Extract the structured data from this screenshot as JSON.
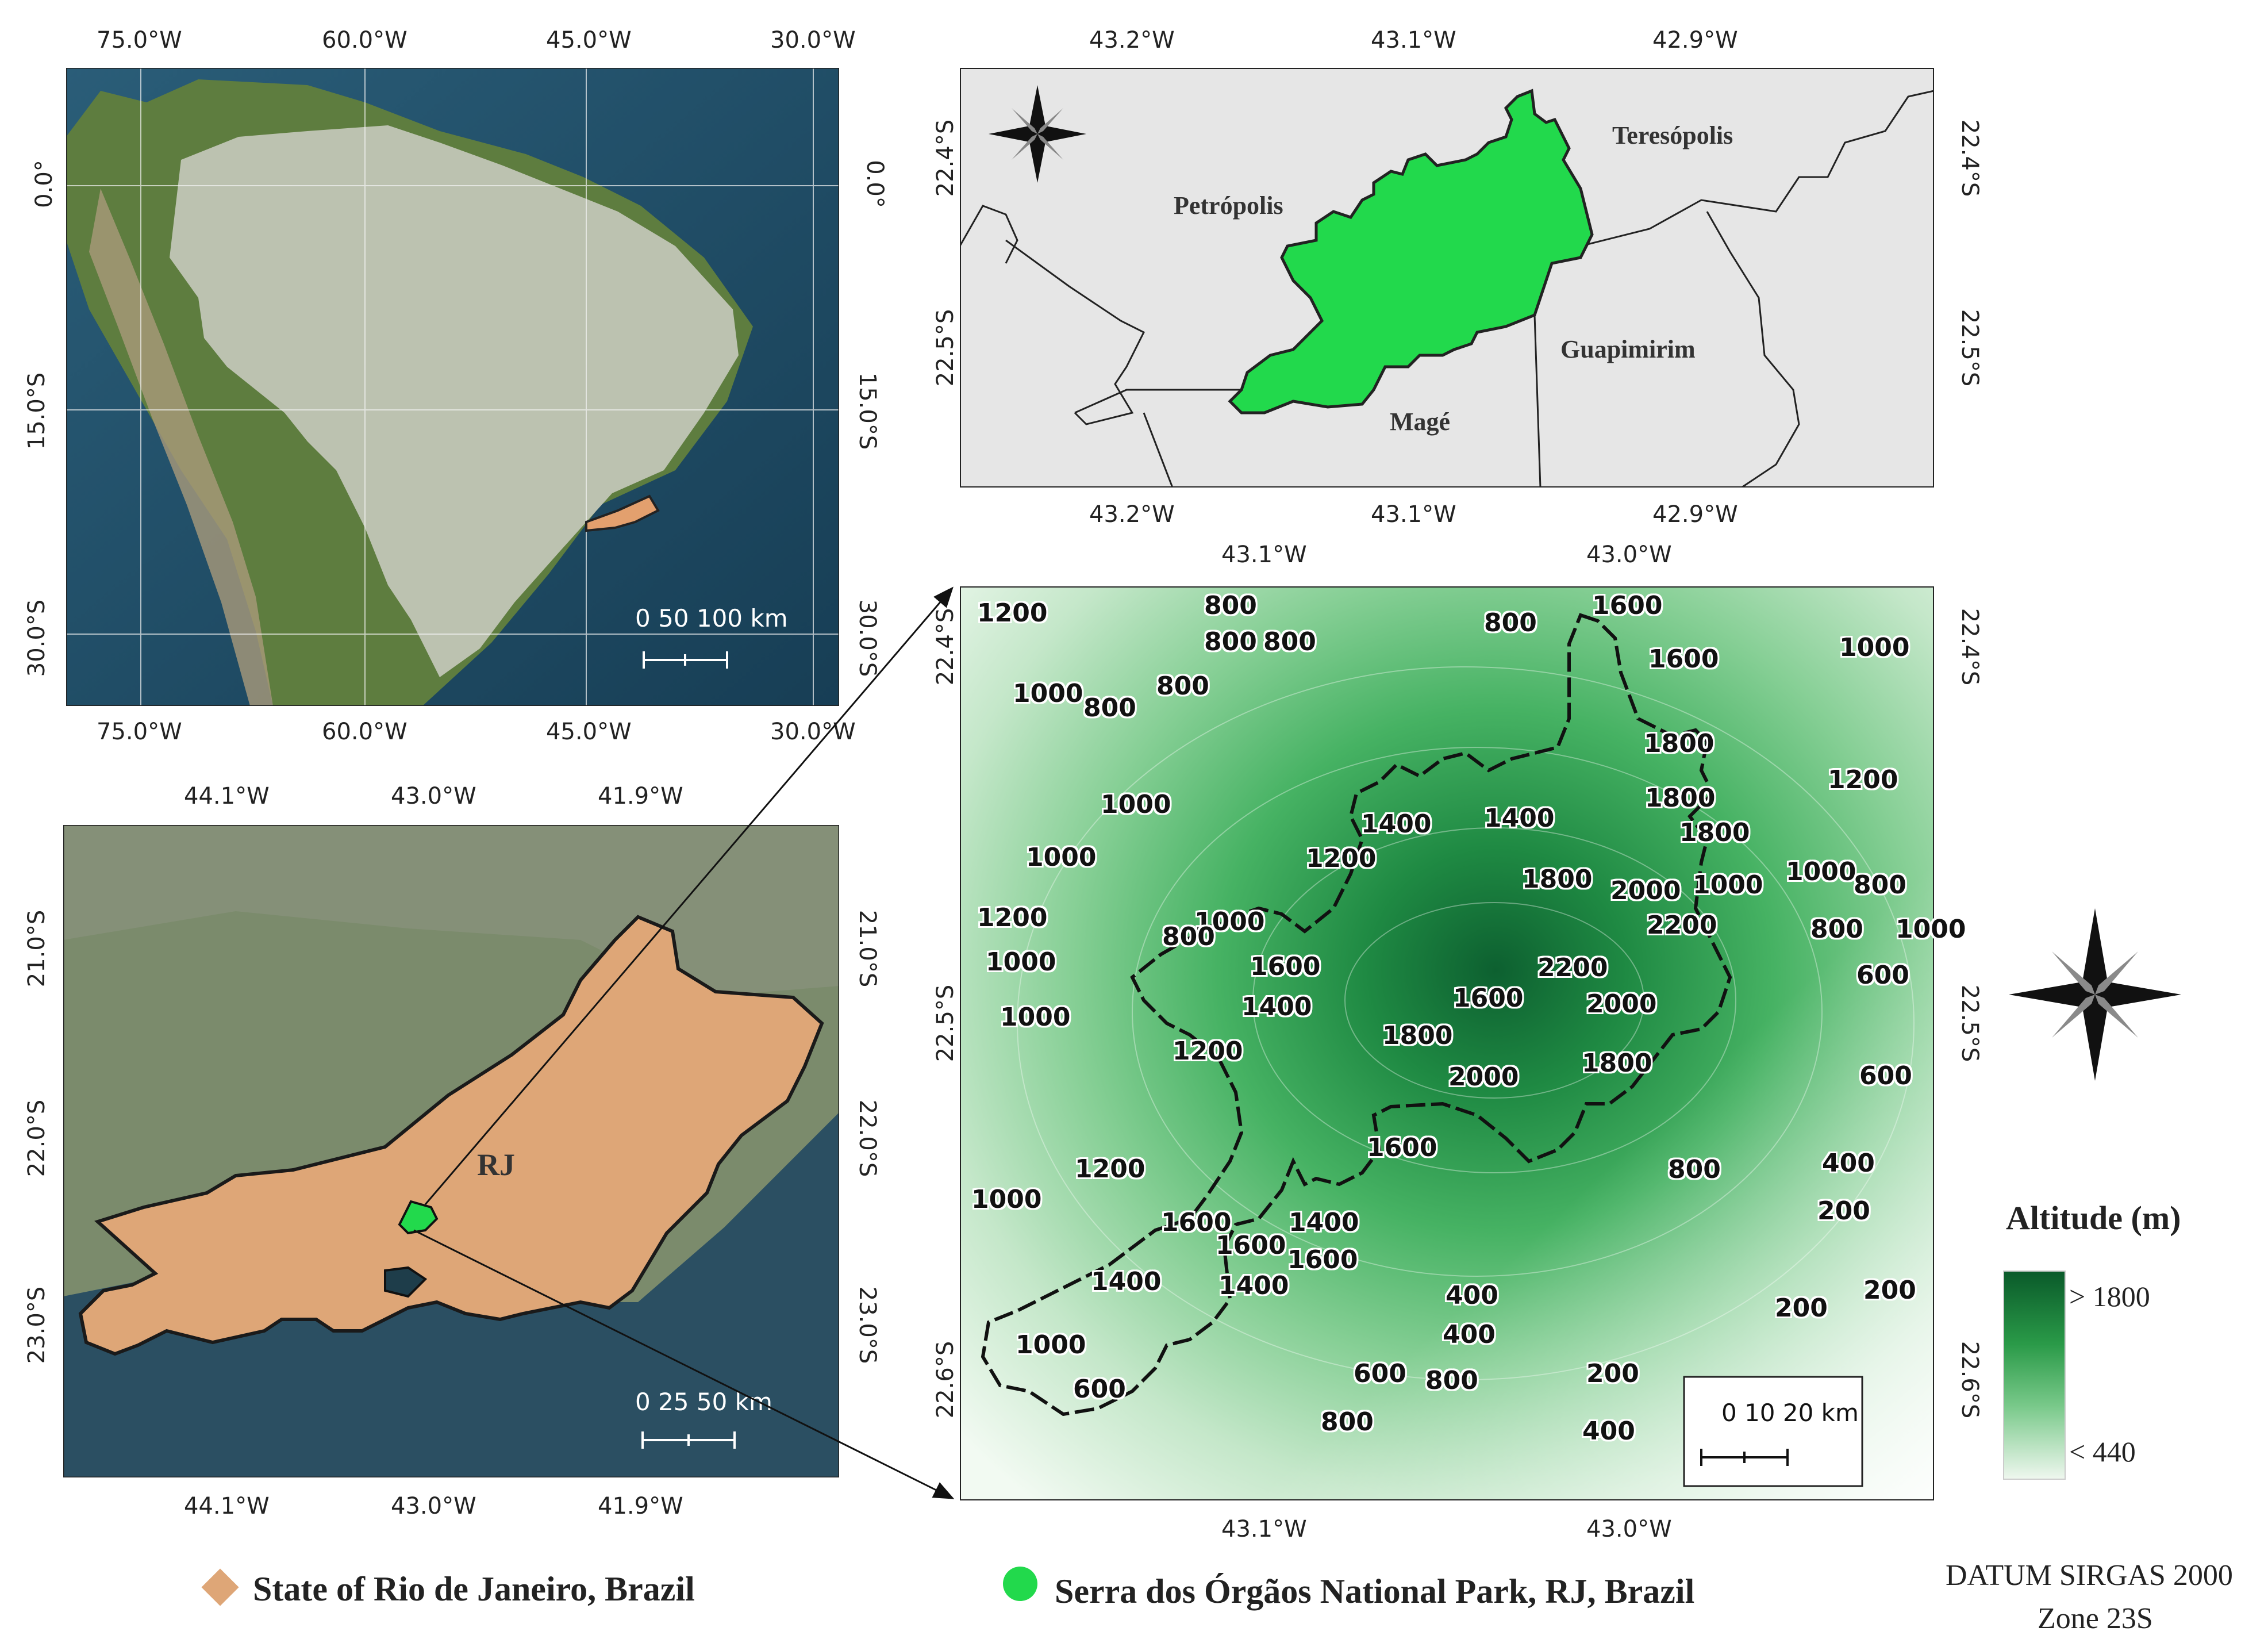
{
  "panel_brazil": {
    "top_ticks": [
      "75.0°W",
      "60.0°W",
      "45.0°W",
      "30.0°W"
    ],
    "bottom_ticks": [
      "75.0°W",
      "60.0°W",
      "45.0°W",
      "30.0°W"
    ],
    "left_ticks": [
      "0.0°",
      "15.0°S",
      "30.0°S"
    ],
    "right_ticks": [
      "0.0°",
      "15.0°S",
      "30.0°S"
    ],
    "scalebar_label": "0  50 100 km",
    "colors": {
      "ocean": "#1f4e66",
      "land": "#5f7d3c",
      "brazil": "#b9bfae",
      "rj": "#e3a06e"
    }
  },
  "panel_municipalities": {
    "top_ticks": [
      "43.2°W",
      "43.1°W",
      "42.9°W"
    ],
    "bottom_ticks": [
      "43.2°W",
      "43.1°W",
      "42.9°W"
    ],
    "left_ticks": [
      "22.4°S",
      "22.5°S"
    ],
    "right_ticks": [
      "22.4°S",
      "22.5°S"
    ],
    "labels": {
      "petropolis": "Petrópolis",
      "teresopolis": "Teresópolis",
      "guapimirim": "Guapimirim",
      "mage": "Magé"
    },
    "colors": {
      "park": "#22d94c",
      "background": "#e6e6e6"
    }
  },
  "panel_rj": {
    "top_ticks": [
      "44.1°W",
      "43.0°W",
      "41.9°W"
    ],
    "bottom_ticks": [
      "44.1°W",
      "43.0°W",
      "41.9°W"
    ],
    "left_ticks": [
      "21.0°S",
      "22.0°S",
      "23.0°S"
    ],
    "right_ticks": [
      "21.0°S",
      "22.0°S",
      "23.0°S"
    ],
    "state_label": "RJ",
    "scalebar_label": "0   25   50 km",
    "colors": {
      "state": "#dea677",
      "land": "#7a8a6a",
      "ocean": "#2b4f62"
    }
  },
  "panel_altitude": {
    "top_ticks": [
      "43.1°W",
      "43.0°W"
    ],
    "bottom_ticks": [
      "43.1°W",
      "43.0°W"
    ],
    "left_ticks": [
      "22.4°S",
      "22.5°S",
      "22.6°S"
    ],
    "right_ticks": [
      "22.4°S",
      "22.5°S",
      "22.6°S"
    ],
    "scalebar_label": "0   10  20 km",
    "contour_labels": [
      "1200",
      "800",
      "800",
      "800",
      "800",
      "1600",
      "1000",
      "1600",
      "1000",
      "800",
      "800",
      "1800",
      "1200",
      "1000",
      "1400",
      "1400",
      "1800",
      "1800",
      "1200",
      "1000",
      "1000",
      "1000",
      "800",
      "1200",
      "1800",
      "2000",
      "1000",
      "800",
      "1000",
      "800",
      "2200",
      "1600",
      "1000",
      "2200",
      "600",
      "1400",
      "1600",
      "2000",
      "1000",
      "1200",
      "1800",
      "1800",
      "2000",
      "600",
      "1600",
      "1200",
      "800",
      "400",
      "1000",
      "1600",
      "1400",
      "200",
      "1600",
      "1600",
      "1400",
      "1400",
      "400",
      "200",
      "200",
      "1000",
      "400",
      "600",
      "800",
      "200",
      "600",
      "800",
      "400"
    ]
  },
  "compass_label": "",
  "legend": {
    "title": "Altitude (m)",
    "high": "> 1800",
    "low": "< 440",
    "colors": {
      "high": "#0a5a2a",
      "mid": "#3aaa55",
      "low": "#eef7ee"
    }
  },
  "bottom_legend": {
    "rj_label": "State of Rio de Janeiro, Brazil",
    "park_label": "Serra dos Órgãos National Park, RJ, Brazil",
    "datum_line1": "DATUM SIRGAS 2000",
    "datum_line2": "Zone 23S"
  }
}
